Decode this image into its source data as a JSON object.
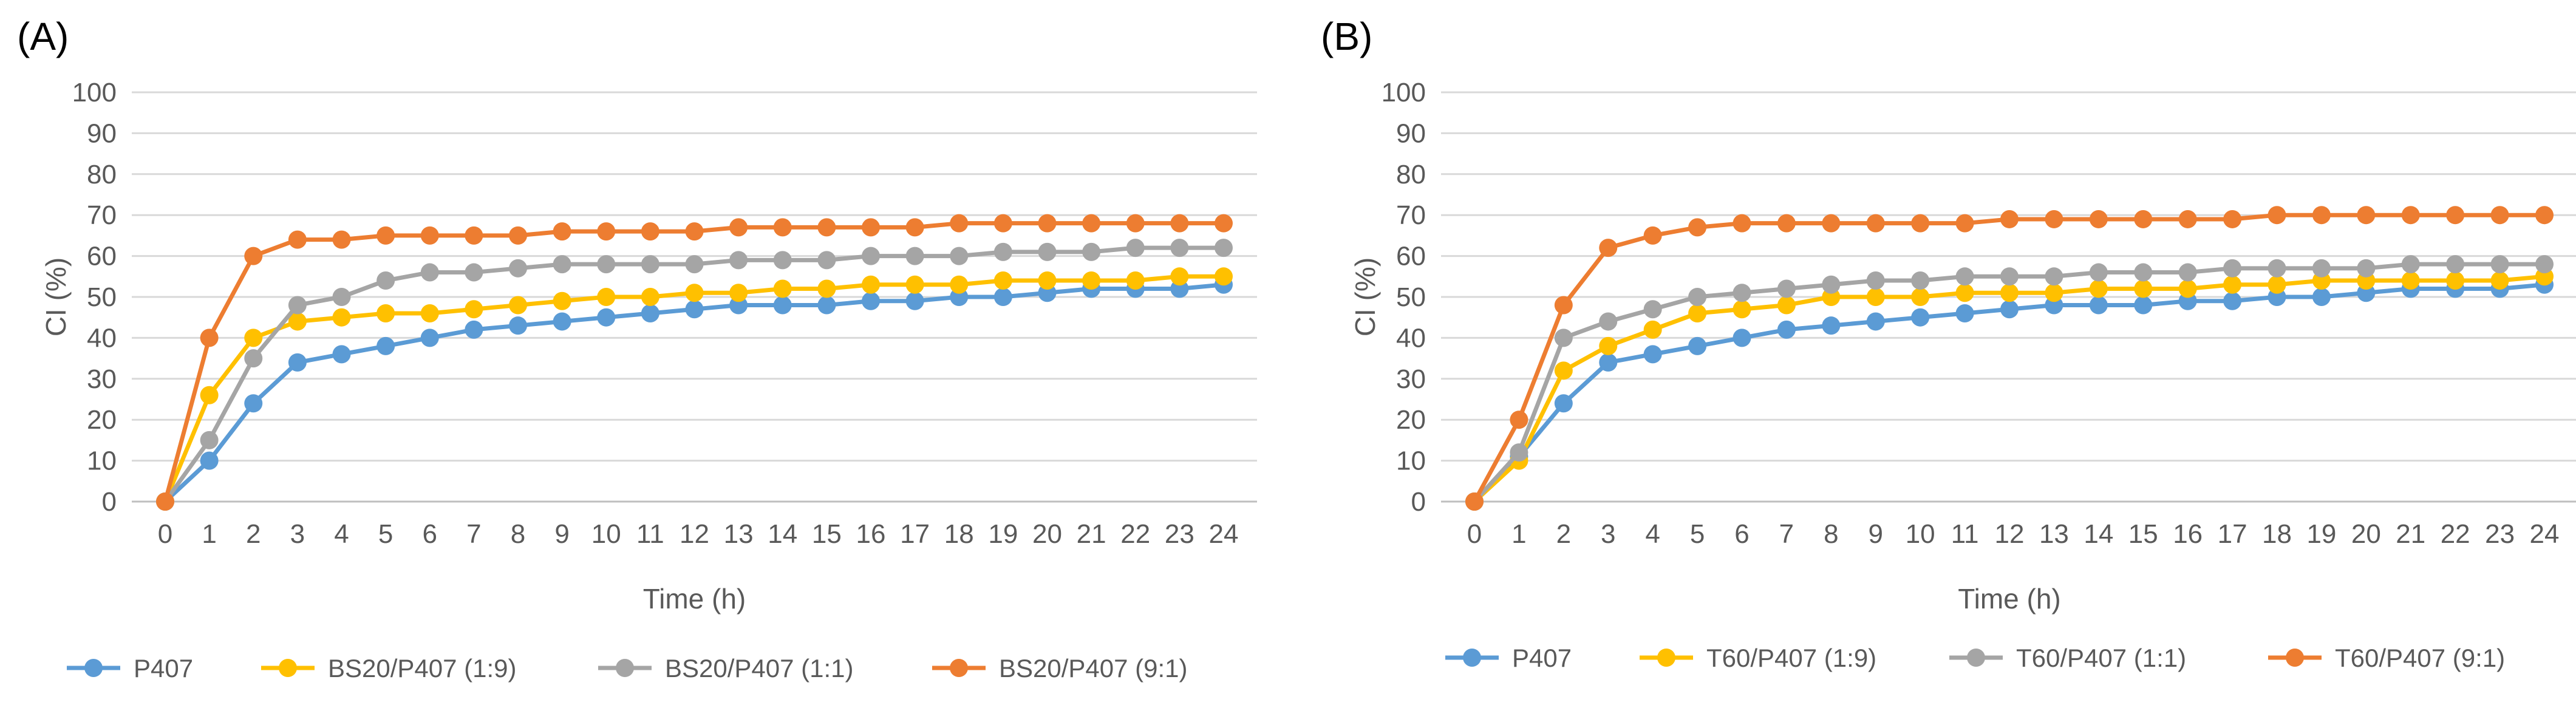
{
  "chart_data": [
    {
      "type": "line",
      "panel_label": "(A)",
      "title": "",
      "xlabel": "Time (h)",
      "ylabel": "CI (%)",
      "x": [
        0,
        1,
        2,
        3,
        4,
        5,
        6,
        7,
        8,
        9,
        10,
        11,
        12,
        13,
        14,
        15,
        16,
        17,
        18,
        19,
        20,
        21,
        22,
        23,
        24
      ],
      "x_tick_labels": [
        "0",
        "1",
        "2",
        "3",
        "4",
        "5",
        "6",
        "7",
        "8",
        "9",
        "10",
        "11",
        "12",
        "13",
        "14",
        "15",
        "16",
        "17",
        "18",
        "19",
        "20",
        "21",
        "22",
        "23",
        "24"
      ],
      "ylim": [
        0,
        100
      ],
      "y_ticks": [
        0,
        10,
        20,
        30,
        40,
        50,
        60,
        70,
        80,
        90,
        100
      ],
      "y_tick_labels": [
        "0",
        "10",
        "20",
        "30",
        "40",
        "50",
        "60",
        "70",
        "80",
        "90",
        "100"
      ],
      "grid": "horizontal",
      "legend_position": "bottom",
      "series": [
        {
          "name": "P407",
          "color": "#5B9BD5",
          "values": [
            0,
            10,
            24,
            34,
            36,
            38,
            40,
            42,
            43,
            44,
            45,
            46,
            47,
            48,
            48,
            48,
            49,
            49,
            50,
            50,
            51,
            52,
            52,
            52,
            53
          ]
        },
        {
          "name": "BS20/P407 (1:9)",
          "color": "#FFC000",
          "values": [
            0,
            26,
            40,
            44,
            45,
            46,
            46,
            47,
            48,
            49,
            50,
            50,
            51,
            51,
            52,
            52,
            53,
            53,
            53,
            54,
            54,
            54,
            54,
            55,
            55
          ]
        },
        {
          "name": "BS20/P407 (1:1)",
          "color": "#A5A5A5",
          "values": [
            0,
            15,
            35,
            48,
            50,
            54,
            56,
            56,
            57,
            58,
            58,
            58,
            58,
            59,
            59,
            59,
            60,
            60,
            60,
            61,
            61,
            61,
            62,
            62,
            62
          ]
        },
        {
          "name": "BS20/P407 (9:1)",
          "color": "#ED7D31",
          "values": [
            0,
            40,
            60,
            64,
            64,
            65,
            65,
            65,
            65,
            66,
            66,
            66,
            66,
            67,
            67,
            67,
            67,
            67,
            68,
            68,
            68,
            68,
            68,
            68,
            68
          ]
        }
      ]
    },
    {
      "type": "line",
      "panel_label": "(B)",
      "title": "",
      "xlabel": "Time (h)",
      "ylabel": "CI (%)",
      "x": [
        0,
        1,
        2,
        3,
        4,
        5,
        6,
        7,
        8,
        9,
        10,
        11,
        12,
        13,
        14,
        15,
        16,
        17,
        18,
        19,
        20,
        21,
        22,
        23,
        24
      ],
      "x_tick_labels": [
        "0",
        "1",
        "2",
        "3",
        "4",
        "5",
        "6",
        "7",
        "8",
        "9",
        "10",
        "11",
        "12",
        "13",
        "14",
        "15",
        "16",
        "17",
        "18",
        "19",
        "20",
        "21",
        "22",
        "23",
        "24"
      ],
      "ylim": [
        0,
        100
      ],
      "y_ticks": [
        0,
        10,
        20,
        30,
        40,
        50,
        60,
        70,
        80,
        90,
        100
      ],
      "y_tick_labels": [
        "0",
        "10",
        "20",
        "30",
        "40",
        "50",
        "60",
        "70",
        "80",
        "90",
        "100"
      ],
      "grid": "horizontal",
      "legend_position": "bottom",
      "series": [
        {
          "name": "P407",
          "color": "#5B9BD5",
          "values": [
            0,
            11,
            24,
            34,
            36,
            38,
            40,
            42,
            43,
            44,
            45,
            46,
            47,
            48,
            48,
            48,
            49,
            49,
            50,
            50,
            51,
            52,
            52,
            52,
            53
          ]
        },
        {
          "name": "T60/P407 (1:9)",
          "color": "#FFC000",
          "values": [
            0,
            10,
            32,
            38,
            42,
            46,
            47,
            48,
            50,
            50,
            50,
            51,
            51,
            51,
            52,
            52,
            52,
            53,
            53,
            54,
            54,
            54,
            54,
            54,
            55
          ]
        },
        {
          "name": "T60/P407 (1:1)",
          "color": "#A5A5A5",
          "values": [
            0,
            12,
            40,
            44,
            47,
            50,
            51,
            52,
            53,
            54,
            54,
            55,
            55,
            55,
            56,
            56,
            56,
            57,
            57,
            57,
            57,
            58,
            58,
            58,
            58
          ]
        },
        {
          "name": "T60/P407 (9:1)",
          "color": "#ED7D31",
          "values": [
            0,
            20,
            48,
            62,
            65,
            67,
            68,
            68,
            68,
            68,
            68,
            68,
            69,
            69,
            69,
            69,
            69,
            69,
            70,
            70,
            70,
            70,
            70,
            70,
            70
          ]
        }
      ]
    }
  ]
}
